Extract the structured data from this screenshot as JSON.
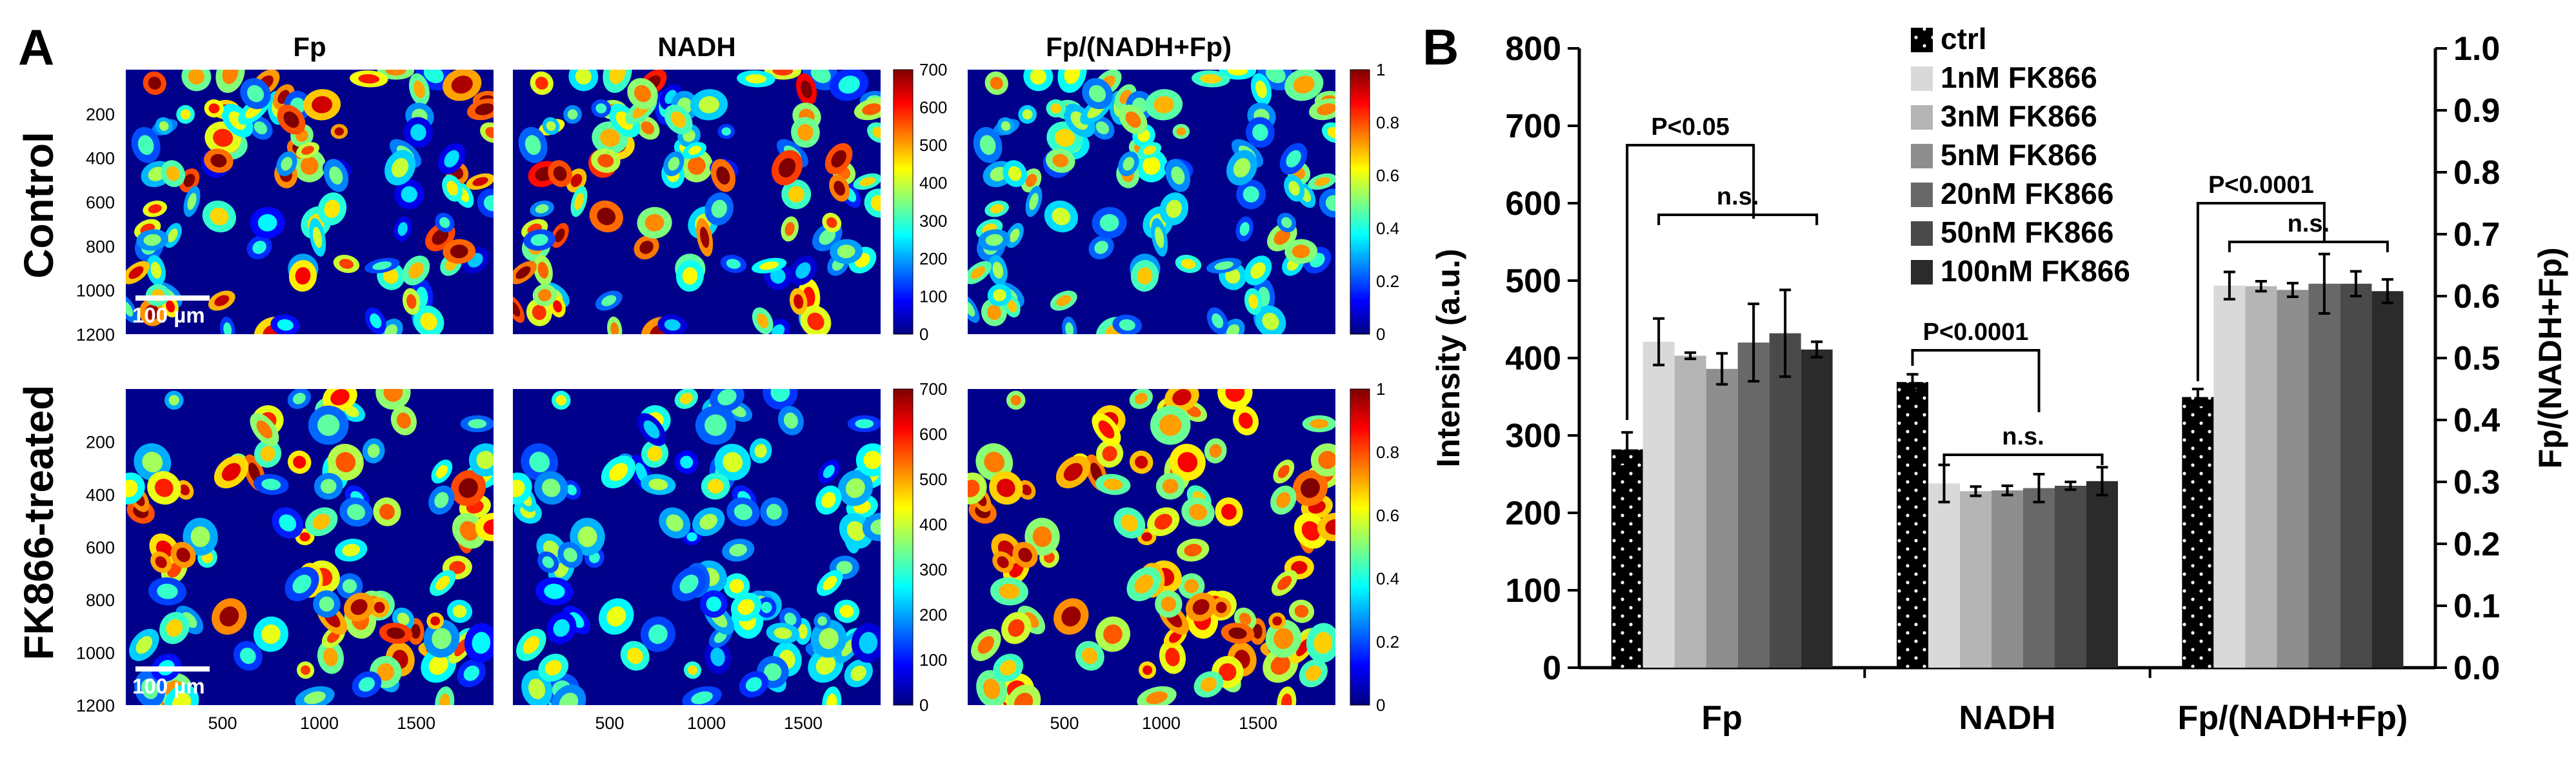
{
  "panel_a": {
    "label": "A",
    "column_titles": [
      "Fp",
      "NADH",
      "Fp/(NADH+Fp)"
    ],
    "row_titles": [
      "Control",
      "FK866-treated"
    ],
    "y_ticks": [
      "200",
      "400",
      "600",
      "800",
      "1000",
      "1200"
    ],
    "x_ticks": [
      "500",
      "1000",
      "1500"
    ],
    "scale_bar_label": "100 µm",
    "colorbar_intensity_ticks": [
      "700",
      "600",
      "500",
      "400",
      "300",
      "200",
      "100",
      "0"
    ],
    "colorbar_ratio_ticks": [
      "1",
      "0.8",
      "0.6",
      "0.4",
      "0.2",
      "0"
    ],
    "colormap": [
      "#00007f",
      "#0000ff",
      "#007fff",
      "#00ffff",
      "#7fff7f",
      "#ffff00",
      "#ff7f00",
      "#ff0000",
      "#7f0000"
    ],
    "background_color": "#00008b"
  },
  "chart_data": {
    "panel_label": "B",
    "type": "bar",
    "categories": [
      "Fp",
      "NADH",
      "Fp/(NADH+Fp)"
    ],
    "ylabel": "Intensity (a.u.)",
    "ylabel_right": "Fp/(NADH+Fp)",
    "ylim": [
      0,
      800
    ],
    "ylim_right": [
      0,
      1.0
    ],
    "y_ticks": [
      "0",
      "100",
      "200",
      "300",
      "400",
      "500",
      "600",
      "700",
      "800"
    ],
    "y_ticks_right": [
      "0.0",
      "0.1",
      "0.2",
      "0.3",
      "0.4",
      "0.5",
      "0.6",
      "0.7",
      "0.8",
      "0.9",
      "1.0"
    ],
    "third_group_axis": "right",
    "series": [
      {
        "name": "ctrl",
        "color": "#000000",
        "values": [
          282,
          369,
          0.437
        ],
        "errors": [
          22,
          10,
          0.013
        ]
      },
      {
        "name": "1nM FK866",
        "color": "#d9d9d9",
        "values": [
          421,
          238,
          0.617
        ],
        "errors": [
          30,
          24,
          0.022
        ]
      },
      {
        "name": "3nM FK866",
        "color": "#b5b5b5",
        "values": [
          403,
          228,
          0.616
        ],
        "errors": [
          4,
          6,
          0.008
        ]
      },
      {
        "name": "5nM FK866",
        "color": "#8e8e8e",
        "values": [
          386,
          229,
          0.61
        ],
        "errors": [
          20,
          6,
          0.011
        ]
      },
      {
        "name": "20nM FK866",
        "color": "#686868",
        "values": [
          420,
          232,
          0.62
        ],
        "errors": [
          50,
          18,
          0.048
        ]
      },
      {
        "name": "50nM FK866",
        "color": "#4a4a4a",
        "values": [
          432,
          235,
          0.62
        ],
        "errors": [
          56,
          5,
          0.02
        ]
      },
      {
        "name": "100nM FK866",
        "color": "#2b2b2b",
        "values": [
          411,
          241,
          0.608
        ],
        "errors": [
          10,
          18,
          0.019
        ]
      }
    ],
    "annotations": [
      "P<0.05",
      "n.s.",
      "P<0.0001",
      "n.s.",
      "P<0.0001",
      "n.s."
    ]
  }
}
